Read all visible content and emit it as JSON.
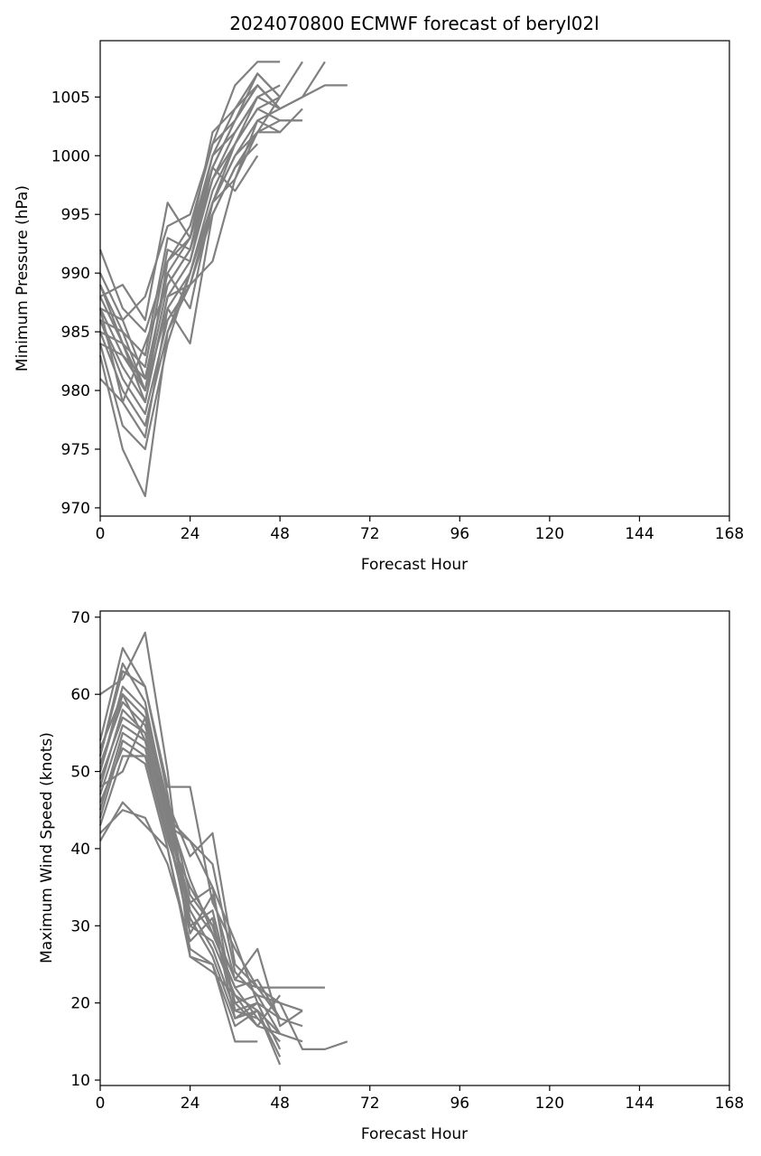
{
  "chart_data": [
    {
      "type": "line",
      "title": "2024070800 ECMWF forecast of beryl02l",
      "xlabel": "Forecast Hour",
      "ylabel": "Minimum Pressure (hPa)",
      "xlim": [
        0,
        168
      ],
      "ylim": [
        969.3,
        1009.8
      ],
      "xticks": [
        0,
        24,
        48,
        72,
        96,
        120,
        144,
        168
      ],
      "yticks": [
        970,
        975,
        980,
        985,
        990,
        995,
        1000,
        1005
      ],
      "grid": false,
      "line_color": "#808080",
      "series": [
        {
          "x": [
            0,
            6,
            12,
            18,
            24,
            30,
            36,
            42,
            48
          ],
          "y": [
            992,
            987,
            985,
            991,
            994,
            1001,
            1006,
            1008,
            1008
          ]
        },
        {
          "x": [
            0,
            6,
            12,
            18,
            24,
            30,
            36,
            42,
            48,
            54
          ],
          "y": [
            990,
            986,
            981,
            990,
            993,
            1000,
            1004,
            1007,
            1005,
            1008
          ]
        },
        {
          "x": [
            0,
            6,
            12,
            18,
            24,
            30,
            36,
            42,
            48,
            54,
            60
          ],
          "y": [
            989,
            985,
            980,
            989,
            992,
            999,
            1003,
            1006,
            1004,
            1005,
            1008
          ]
        },
        {
          "x": [
            0,
            6,
            12,
            18,
            24,
            30,
            36,
            42,
            48,
            54,
            60,
            66
          ],
          "y": [
            988,
            984,
            979,
            988,
            991,
            998,
            1002,
            1005,
            1004,
            1005,
            1006,
            1006
          ]
        },
        {
          "x": [
            0,
            6,
            12,
            18,
            24,
            30,
            36,
            42,
            48,
            54
          ],
          "y": [
            987,
            983,
            980,
            987,
            990,
            997,
            1001,
            1004,
            1003,
            1003
          ]
        },
        {
          "x": [
            0,
            6,
            12,
            18,
            24,
            30,
            36,
            42,
            48,
            54
          ],
          "y": [
            986,
            981,
            978,
            986,
            989,
            996,
            1000,
            1003,
            1002,
            1004
          ]
        },
        {
          "x": [
            0,
            6,
            12,
            18,
            24,
            30,
            36,
            42,
            48
          ],
          "y": [
            985,
            980,
            977,
            985,
            989,
            995,
            999,
            1002,
            1002
          ]
        },
        {
          "x": [
            0,
            6,
            12,
            18,
            24,
            30,
            36,
            42,
            48,
            54
          ],
          "y": [
            984,
            977,
            975,
            984,
            990,
            996,
            1000,
            1002,
            1003,
            1003
          ]
        },
        {
          "x": [
            0,
            6,
            12,
            18,
            24,
            30,
            36,
            42
          ],
          "y": [
            981,
            979,
            976,
            987,
            984,
            995,
            999,
            1001
          ]
        },
        {
          "x": [
            0,
            6,
            12,
            18,
            24,
            30,
            36,
            42,
            48
          ],
          "y": [
            983,
            975,
            971,
            985,
            990,
            996,
            998,
            1002,
            1005
          ]
        },
        {
          "x": [
            0,
            6,
            12,
            18,
            24,
            30,
            36,
            42,
            48
          ],
          "y": [
            988,
            989,
            986,
            996,
            993,
            1002,
            1004,
            1006,
            1004
          ]
        },
        {
          "x": [
            0,
            6,
            12,
            18,
            24,
            30,
            36,
            42,
            48
          ],
          "y": [
            987,
            986,
            988,
            994,
            995,
            1001,
            1003,
            1007,
            1005
          ]
        },
        {
          "x": [
            0,
            6,
            12,
            18,
            24,
            30,
            36,
            42,
            48
          ],
          "y": [
            986,
            985,
            983,
            993,
            992,
            1000,
            1002,
            1005,
            1006
          ]
        },
        {
          "x": [
            0,
            6,
            12,
            18,
            24,
            30,
            36,
            42,
            48
          ],
          "y": [
            985,
            984,
            982,
            992,
            991,
            999,
            1003,
            1006,
            1004
          ]
        },
        {
          "x": [
            0,
            6,
            12,
            18,
            24,
            30,
            36,
            42,
            48
          ],
          "y": [
            984,
            983,
            981,
            990,
            987,
            996,
            1001,
            1004,
            1005
          ]
        },
        {
          "x": [
            0,
            6,
            12,
            18,
            24,
            30,
            36,
            42,
            48
          ],
          "y": [
            986,
            982,
            979,
            988,
            989,
            991,
            998,
            1003,
            1004
          ]
        },
        {
          "x": [
            0,
            6,
            12,
            18,
            24,
            30,
            36,
            42
          ],
          "y": [
            989,
            984,
            980,
            991,
            993,
            999,
            997,
            1000
          ]
        },
        {
          "x": [
            0,
            6,
            12,
            18,
            24,
            30,
            36,
            42
          ],
          "y": [
            987,
            979,
            984,
            989,
            992,
            998,
            1001,
            1005
          ]
        }
      ]
    },
    {
      "type": "line",
      "title": "",
      "xlabel": "Forecast Hour",
      "ylabel": "Maximum Wind Speed (knots)",
      "xlim": [
        0,
        168
      ],
      "ylim": [
        9.3,
        70.8
      ],
      "xticks": [
        0,
        24,
        48,
        72,
        96,
        120,
        144,
        168
      ],
      "yticks": [
        10,
        20,
        30,
        40,
        50,
        60,
        70
      ],
      "grid": false,
      "line_color": "#808080",
      "series": [
        {
          "x": [
            0,
            6,
            12,
            18,
            24,
            30,
            36,
            42,
            48
          ],
          "y": [
            60,
            62,
            68,
            50,
            26,
            24,
            21,
            19,
            13
          ]
        },
        {
          "x": [
            0,
            6,
            12,
            18,
            24,
            30,
            36,
            42,
            48,
            54
          ],
          "y": [
            54,
            66,
            61,
            48,
            48,
            33,
            27,
            22,
            20,
            19
          ]
        },
        {
          "x": [
            0,
            6,
            12,
            18,
            24,
            30,
            36,
            42,
            48,
            54,
            60
          ],
          "y": [
            50,
            60,
            57,
            46,
            39,
            42,
            25,
            22,
            22,
            22,
            22
          ]
        },
        {
          "x": [
            0,
            6,
            12,
            18,
            24,
            30,
            36,
            42,
            48,
            54,
            60,
            66
          ],
          "y": [
            48,
            58,
            55,
            44,
            41,
            38,
            24,
            21,
            20,
            14,
            14,
            15
          ]
        },
        {
          "x": [
            0,
            6,
            12,
            18,
            24,
            30,
            36,
            42,
            48,
            54
          ],
          "y": [
            47,
            56,
            54,
            43,
            41,
            35,
            28,
            20,
            18,
            17
          ]
        },
        {
          "x": [
            0,
            6,
            12,
            18,
            24,
            30,
            36,
            42,
            48,
            54
          ],
          "y": [
            45,
            55,
            53,
            42,
            35,
            30,
            23,
            27,
            17,
            19
          ]
        },
        {
          "x": [
            0,
            6,
            12,
            18,
            24,
            30,
            36,
            42,
            48
          ],
          "y": [
            44,
            54,
            52,
            41,
            33,
            29,
            22,
            23,
            18
          ]
        },
        {
          "x": [
            0,
            6,
            12,
            18,
            24,
            30,
            36,
            42,
            48,
            54
          ],
          "y": [
            43,
            52,
            52,
            42,
            30,
            28,
            21,
            17,
            16,
            15
          ]
        },
        {
          "x": [
            0,
            6,
            12,
            18,
            24,
            30,
            36,
            42
          ],
          "y": [
            41,
            46,
            43,
            40,
            26,
            25,
            15,
            15
          ]
        },
        {
          "x": [
            0,
            6,
            12,
            18,
            24,
            30,
            36,
            42,
            48
          ],
          "y": [
            42,
            45,
            44,
            38,
            28,
            31,
            18,
            19,
            12
          ]
        },
        {
          "x": [
            0,
            6,
            12,
            18,
            24,
            30,
            36,
            42,
            48
          ],
          "y": [
            52,
            63,
            61,
            47,
            30,
            32,
            20,
            21,
            16
          ]
        },
        {
          "x": [
            0,
            6,
            12,
            18,
            24,
            30,
            36,
            42,
            48
          ],
          "y": [
            51,
            59,
            56,
            45,
            32,
            27,
            19,
            18,
            15
          ]
        },
        {
          "x": [
            0,
            6,
            12,
            18,
            24,
            30,
            36,
            42,
            48
          ],
          "y": [
            49,
            57,
            55,
            44,
            31,
            26,
            18,
            20,
            14
          ]
        },
        {
          "x": [
            0,
            6,
            12,
            18,
            24,
            30,
            36,
            42,
            48
          ],
          "y": [
            53,
            60,
            54,
            43,
            29,
            34,
            23,
            22,
            18
          ]
        },
        {
          "x": [
            0,
            6,
            12,
            18,
            24,
            30,
            36,
            42,
            48
          ],
          "y": [
            50,
            61,
            58,
            46,
            34,
            30,
            20,
            17,
            21
          ]
        },
        {
          "x": [
            0,
            6,
            12,
            18,
            24,
            30,
            36,
            42,
            48
          ],
          "y": [
            46,
            53,
            51,
            40,
            27,
            25,
            17,
            19,
            16
          ]
        },
        {
          "x": [
            0,
            6,
            12,
            18,
            24,
            30,
            36,
            42
          ],
          "y": [
            48,
            50,
            57,
            44,
            33,
            35,
            19,
            20
          ]
        },
        {
          "x": [
            0,
            6,
            12,
            18,
            24,
            30,
            36,
            42
          ],
          "y": [
            52,
            64,
            59,
            45,
            36,
            29,
            22,
            18
          ]
        }
      ]
    }
  ]
}
